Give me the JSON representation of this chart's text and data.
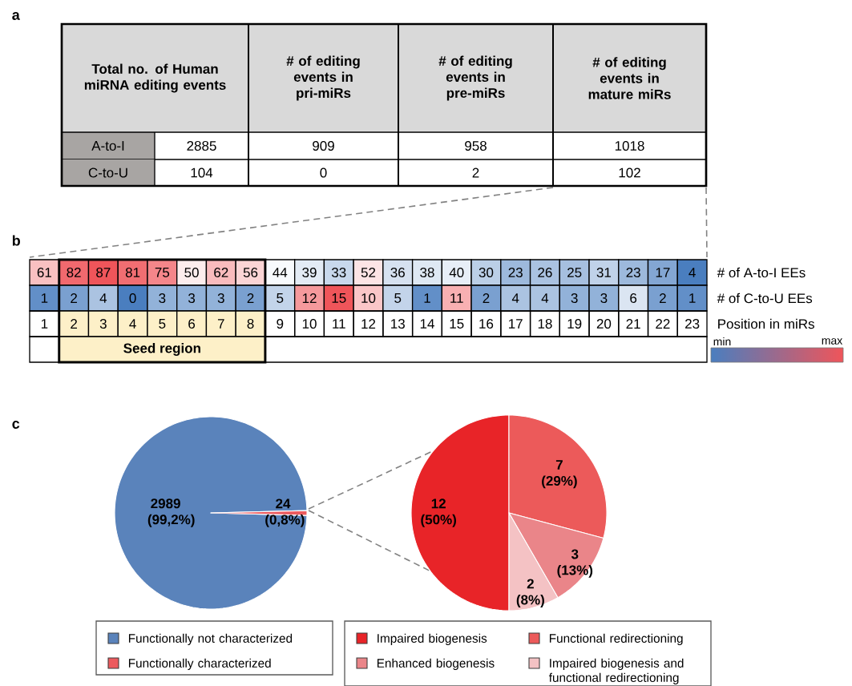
{
  "chart_data": [
    {
      "type": "other",
      "title": "a",
      "annotations": [
        "Total no. of Human miRNA editing events",
        "# of editing events in pri-miRs",
        "# of editing events in pre-miRs",
        "# of editing events in mature miRs",
        "A-to-I",
        "2885",
        "909",
        "958",
        "1018",
        "C-to-U",
        "104",
        "0",
        "2",
        "102"
      ]
    },
    {
      "type": "heatmap",
      "title": "b",
      "categories": [
        "1",
        "2",
        "3",
        "4",
        "5",
        "6",
        "7",
        "8",
        "9",
        "10",
        "11",
        "12",
        "13",
        "14",
        "15",
        "16",
        "17",
        "18",
        "19",
        "20",
        "21",
        "22",
        "23"
      ],
      "xlabel": "Position in miRs",
      "data_labels": true,
      "y_categories": [
        "# of A-to-I EEs",
        "# of C-to-U EEs"
      ],
      "cells": [
        [
          61,
          82,
          87,
          81,
          75,
          50,
          62,
          56,
          44,
          39,
          33,
          52,
          36,
          38,
          40,
          30,
          23,
          26,
          25,
          31,
          23,
          17,
          4
        ],
        [
          1,
          2,
          4,
          0,
          3,
          3,
          3,
          2,
          5,
          12,
          15,
          10,
          5,
          1,
          11,
          2,
          4,
          4,
          3,
          3,
          6,
          2,
          1
        ]
      ],
      "annotations": [
        "Seed region",
        "min",
        "max"
      ]
    },
    {
      "type": "pie",
      "title": "c",
      "categories": [
        "Functionally not characterized",
        "Functionally characterized"
      ],
      "values": [
        2989,
        24
      ],
      "colors": [
        "#5a83bb",
        "#ec5a5e"
      ],
      "value_labels": [
        "2989 (99,2%)",
        "24 (0,8%)"
      ],
      "legend": "bottom"
    },
    {
      "type": "pie",
      "categories": [
        "Impaired biogenesis",
        "Functional redirectioning",
        "Enhanced biogenesis",
        "Impaired biogenesis and functional redirectioning"
      ],
      "values": [
        12,
        7,
        3,
        2
      ],
      "colors": [
        "#e82428",
        "#ec5a5a",
        "#ea8589",
        "#f4c2c4"
      ],
      "value_labels": [
        "12 (50%)",
        "7 (29%)",
        "3 (13%)",
        "2 (8%)"
      ],
      "legend": "bottom"
    }
  ]
}
